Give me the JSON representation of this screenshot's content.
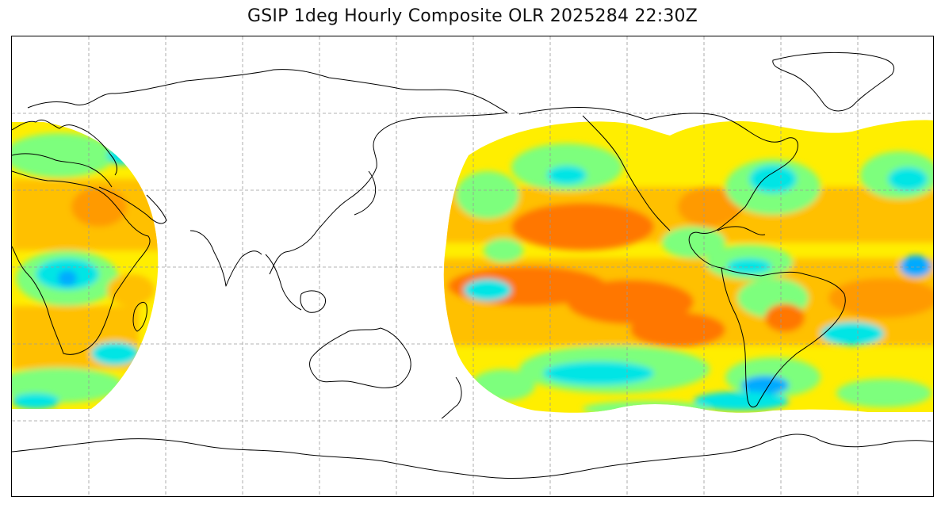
{
  "title": "GSIP 1deg Hourly Composite OLR 2025284 22:30Z",
  "map": {
    "projection": "plate-carree",
    "central_longitude": 180,
    "lon_range": [
      0,
      360
    ],
    "lat_range": [
      -90,
      90
    ],
    "gridlines": true,
    "gridline_style": "dashed",
    "gridline_lons": [
      30,
      60,
      90,
      120,
      150,
      180,
      210,
      240,
      270,
      300,
      330
    ],
    "gridline_lats": [
      -60,
      -30,
      0,
      30,
      60
    ]
  },
  "colors": {
    "frame": "#000000",
    "coastline": "#000000",
    "grid": "#9a9a9a",
    "olr_levels": [
      "#0050ff",
      "#00aaff",
      "#00e5e5",
      "#7dff7d",
      "#c8ff3c",
      "#ffee00",
      "#ffc000",
      "#ff9a00",
      "#ff7700",
      "#ff3b00"
    ]
  },
  "coverage": [
    {
      "name": "eastern-atlantic-africa",
      "lon_range": [
        0,
        57
      ],
      "lat_range": [
        -55,
        57
      ]
    },
    {
      "name": "pacific-americas-atlantic",
      "lon_range": [
        170,
        360
      ],
      "lat_range": [
        -55,
        57
      ]
    }
  ]
}
